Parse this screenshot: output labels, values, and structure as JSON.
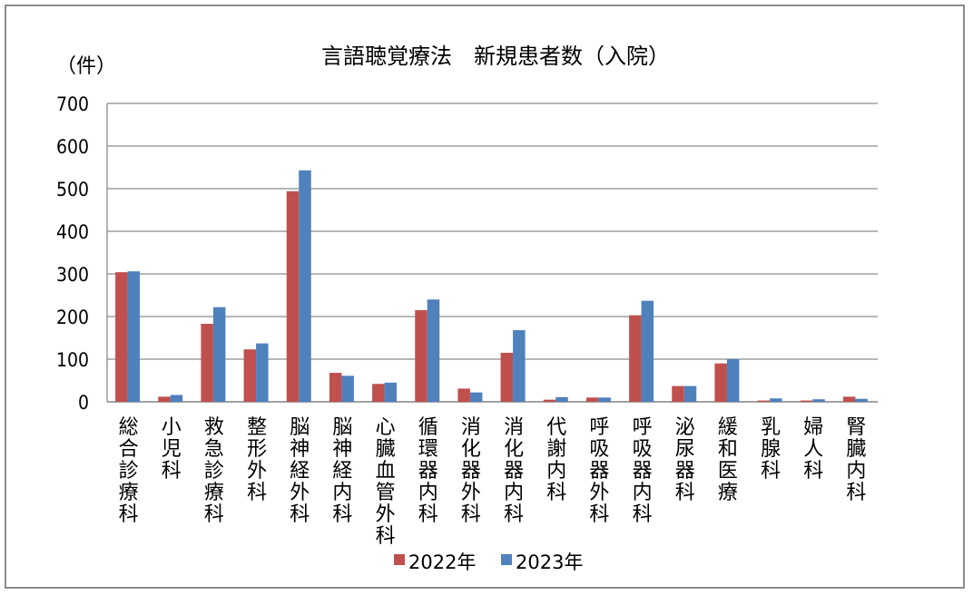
{
  "chart_data": {
    "type": "bar",
    "title": "言語聴覚療法　新規患者数（入院）",
    "unit_label": "（件）",
    "categories": [
      "総合診療科",
      "小児科",
      "救急診療科",
      "整形外科",
      "脳神経外科",
      "脳神経内科",
      "心臓血管外科",
      "循環器内科",
      "消化器外科",
      "消化器内科",
      "代謝内科",
      "呼吸器外科",
      "呼吸器内科",
      "泌尿器科",
      "緩和医療",
      "乳腺科",
      "婦人科",
      "腎臓内科"
    ],
    "series": [
      {
        "name": "2022年",
        "color": "#c0504d",
        "values": [
          304,
          12,
          183,
          123,
          494,
          68,
          42,
          215,
          31,
          115,
          5,
          10,
          203,
          37,
          90,
          3,
          3,
          12
        ]
      },
      {
        "name": "2023年",
        "color": "#4f81bd",
        "values": [
          306,
          16,
          222,
          137,
          543,
          61,
          45,
          240,
          22,
          168,
          11,
          10,
          237,
          37,
          100,
          8,
          6,
          7
        ]
      }
    ],
    "ylim": [
      0,
      700
    ],
    "yticks": [
      "0",
      "100",
      "200",
      "300",
      "400",
      "500",
      "600",
      "700"
    ],
    "grid": true,
    "legend_position": "bottom"
  }
}
